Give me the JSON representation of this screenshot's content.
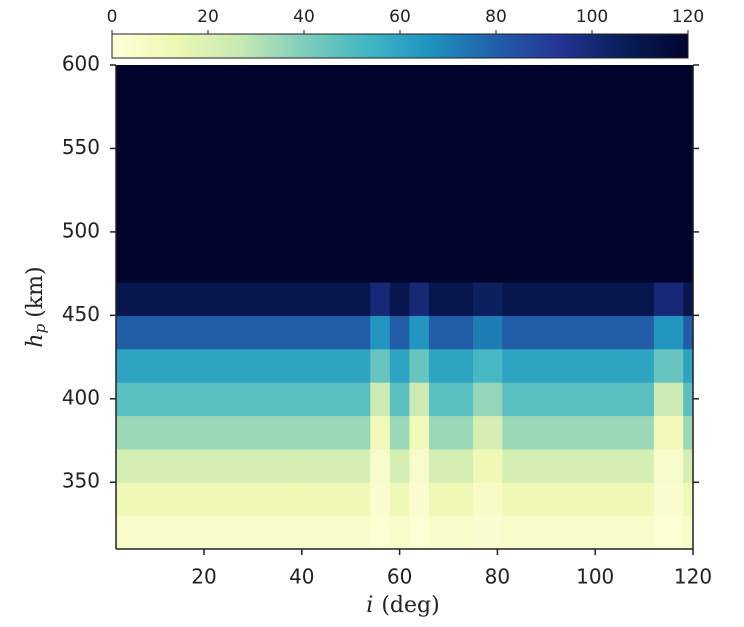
{
  "chart_data": {
    "type": "heatmap",
    "xlabel": {
      "symbol": "i",
      "unit": "(deg)"
    },
    "ylabel": {
      "symbol": "h",
      "subscript": "p",
      "unit": "(km)"
    },
    "x": [
      5,
      12,
      20,
      28,
      36,
      42,
      48,
      52,
      56,
      60,
      64,
      68,
      72,
      78,
      84,
      92,
      100,
      108,
      116,
      120
    ],
    "y": [
      320,
      340,
      360,
      380,
      400,
      420,
      440,
      460,
      480,
      500,
      520,
      540,
      560,
      580,
      600
    ],
    "z": [
      [
        5,
        5,
        5,
        5,
        5,
        5,
        5,
        5,
        2,
        5,
        2,
        5,
        5,
        3,
        5,
        5,
        5,
        5,
        2,
        5
      ],
      [
        12,
        12,
        12,
        12,
        12,
        12,
        12,
        12,
        3,
        12,
        3,
        12,
        12,
        6,
        12,
        12,
        12,
        12,
        3,
        12
      ],
      [
        22,
        22,
        22,
        22,
        22,
        22,
        22,
        22,
        5,
        22,
        5,
        22,
        22,
        12,
        22,
        22,
        22,
        22,
        5,
        22
      ],
      [
        35,
        35,
        35,
        35,
        35,
        35,
        35,
        35,
        10,
        35,
        10,
        35,
        35,
        22,
        35,
        35,
        35,
        35,
        10,
        35
      ],
      [
        48,
        48,
        48,
        48,
        48,
        48,
        48,
        48,
        25,
        48,
        25,
        48,
        48,
        36,
        48,
        48,
        48,
        48,
        25,
        48
      ],
      [
        60,
        60,
        60,
        60,
        60,
        60,
        60,
        60,
        45,
        60,
        45,
        60,
        60,
        52,
        60,
        60,
        60,
        60,
        45,
        60
      ],
      [
        80,
        80,
        80,
        80,
        80,
        80,
        80,
        80,
        65,
        80,
        65,
        80,
        80,
        72,
        80,
        80,
        80,
        80,
        65,
        80
      ],
      [
        110,
        110,
        110,
        110,
        110,
        110,
        110,
        110,
        100,
        110,
        100,
        110,
        110,
        105,
        110,
        110,
        110,
        110,
        100,
        110
      ],
      [
        120,
        120,
        120,
        120,
        120,
        120,
        120,
        120,
        120,
        120,
        120,
        120,
        120,
        120,
        120,
        120,
        120,
        120,
        120,
        120
      ],
      [
        120,
        120,
        120,
        120,
        120,
        120,
        120,
        120,
        120,
        120,
        120,
        120,
        120,
        120,
        120,
        120,
        120,
        120,
        120,
        120
      ],
      [
        120,
        120,
        120,
        120,
        120,
        120,
        120,
        120,
        120,
        120,
        120,
        120,
        120,
        120,
        120,
        120,
        120,
        120,
        120,
        120
      ],
      [
        120,
        120,
        120,
        120,
        120,
        120,
        120,
        120,
        120,
        120,
        120,
        120,
        120,
        120,
        120,
        120,
        120,
        120,
        120,
        120
      ],
      [
        120,
        120,
        120,
        120,
        120,
        120,
        120,
        120,
        120,
        120,
        120,
        120,
        120,
        120,
        120,
        120,
        120,
        120,
        120,
        120
      ],
      [
        120,
        120,
        120,
        120,
        120,
        120,
        120,
        120,
        120,
        120,
        120,
        120,
        120,
        120,
        120,
        120,
        120,
        120,
        120,
        120
      ],
      [
        120,
        120,
        120,
        120,
        120,
        120,
        120,
        120,
        120,
        120,
        120,
        120,
        120,
        120,
        120,
        120,
        120,
        120,
        120,
        120
      ]
    ],
    "xlim": [
      2,
      120
    ],
    "xticks": [
      20,
      40,
      60,
      80,
      100,
      120
    ],
    "ylim": [
      310,
      600
    ],
    "yticks": [
      350,
      400,
      450,
      500,
      550,
      600
    ],
    "clim": [
      0,
      120
    ],
    "cticks": [
      0,
      20,
      40,
      60,
      80,
      100,
      120
    ],
    "colormap": [
      "#ffffd9",
      "#edf8b1",
      "#c7e9b4",
      "#7fcdbb",
      "#41b6c4",
      "#1d91c0",
      "#225ea8",
      "#253494",
      "#081d58",
      "#02042e"
    ]
  }
}
